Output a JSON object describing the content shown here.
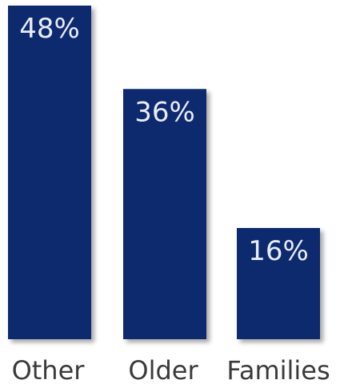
{
  "chart_data": {
    "type": "bar",
    "categories": [
      "Other",
      "Older",
      "Families"
    ],
    "values": [
      48,
      36,
      16
    ],
    "value_labels": [
      "48%",
      "36%",
      "16%"
    ],
    "ylim": [
      0,
      48
    ],
    "grid": false,
    "bar_color": "#0d2a6e"
  }
}
